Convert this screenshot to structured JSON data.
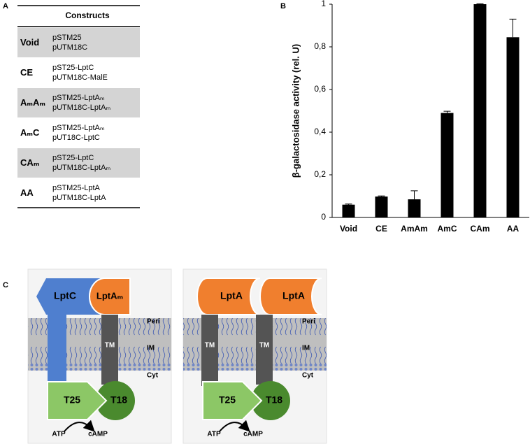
{
  "panel_labels": [
    "A",
    "B",
    "C"
  ],
  "table": {
    "header": "Constructs",
    "rows": [
      {
        "name": "Void",
        "lines": [
          "pSTM25",
          "pUTM18C"
        ]
      },
      {
        "name": "CE",
        "lines": [
          "pST25-LptC",
          "pUTM18C-MalE"
        ]
      },
      {
        "name": "AₘAₘ",
        "lines": [
          "pSTM25-LptAₘ",
          "pUTM18C-LptAₘ"
        ]
      },
      {
        "name": "AₘC",
        "lines": [
          "pSTM25-LptAₘ",
          "pUT18C-LptC"
        ]
      },
      {
        "name": "CAₘ",
        "lines": [
          "pST25-LptC",
          "pUTM18C-LptAₘ"
        ]
      },
      {
        "name": "AA",
        "lines": [
          "pSTM25-LptA",
          "pUTM18C-LptA"
        ]
      }
    ]
  },
  "chart_data": {
    "type": "bar",
    "ylabel": "β-galactosidase activity (rel. U)",
    "categories": [
      "Void",
      "CE",
      "AmAm",
      "AmC",
      "CAm",
      "AA"
    ],
    "values": [
      0.06,
      0.098,
      0.085,
      0.49,
      1.0,
      0.845
    ],
    "errors": [
      0.003,
      0.003,
      0.04,
      0.008,
      0.002,
      0.085
    ],
    "color": "#000000",
    "ylim": [
      0,
      1
    ],
    "yticks": [
      0,
      {
        "value": 0.2,
        "label": "0,2"
      },
      {
        "value": 0.4,
        "label": "0,4"
      },
      {
        "value": 0.6,
        "label": "0,6"
      },
      {
        "value": 0.8,
        "label": "0,8"
      },
      1
    ]
  },
  "diagrams": [
    {
      "top": [
        "LptC",
        "LptAₘ"
      ],
      "tm": [
        "TM"
      ],
      "layers": [
        "Peri",
        "IM",
        "Cyt"
      ],
      "domains": [
        "T25",
        "T18"
      ],
      "reaction": [
        "ATP",
        "cAMP"
      ]
    },
    {
      "top": [
        "LptA",
        "LptA"
      ],
      "tm": [
        "TM",
        "TM"
      ],
      "layers": [
        "Peri",
        "IM",
        "Cyt"
      ],
      "domains": [
        "T25",
        "T18"
      ],
      "reaction": [
        "ATP",
        "cAMP"
      ]
    }
  ]
}
